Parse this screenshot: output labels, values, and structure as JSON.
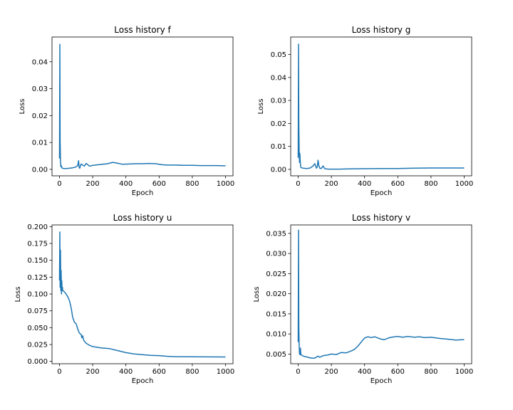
{
  "chart_data": [
    {
      "type": "line",
      "title": "Loss history f",
      "xlabel": "Epoch",
      "ylabel": "Loss",
      "xlim": [
        -45,
        1045
      ],
      "ylim": [
        -0.0024,
        0.0492
      ],
      "xticks": [
        0,
        200,
        400,
        600,
        800,
        1000
      ],
      "xtick_labels": [
        "0",
        "200",
        "400",
        "600",
        "800",
        "1000"
      ],
      "yticks": [
        0.0,
        0.01,
        0.02,
        0.03,
        0.04
      ],
      "ytick_labels": [
        "0.00",
        "0.01",
        "0.02",
        "0.03",
        "0.04"
      ],
      "grid": false,
      "color": "#1f77b4",
      "series": [
        {
          "x": [
            0,
            2,
            4,
            6,
            8,
            10,
            15,
            25,
            40,
            60,
            80,
            100,
            110,
            115,
            118,
            122,
            130,
            150,
            160,
            170,
            180,
            190,
            200,
            230,
            260,
            290,
            320,
            340,
            380,
            420,
            460,
            500,
            540,
            580,
            620,
            660,
            700,
            750,
            800,
            850,
            900,
            950,
            1000
          ],
          "y": [
            0.004,
            0.0465,
            0.011,
            0.003,
            0.001,
            0.0015,
            0.0005,
            0.0003,
            0.0003,
            0.0004,
            0.0006,
            0.0009,
            0.0015,
            0.0032,
            0.0008,
            0.0004,
            0.002,
            0.0012,
            0.0022,
            0.0018,
            0.0012,
            0.0013,
            0.0015,
            0.0017,
            0.0019,
            0.0021,
            0.0026,
            0.0024,
            0.0019,
            0.002,
            0.0021,
            0.0021,
            0.0022,
            0.0021,
            0.0017,
            0.0016,
            0.0016,
            0.0015,
            0.0015,
            0.0014,
            0.0014,
            0.0014,
            0.0013
          ]
        }
      ]
    },
    {
      "type": "line",
      "title": "Loss history g",
      "xlabel": "Epoch",
      "ylabel": "Loss",
      "xlim": [
        -45,
        1045
      ],
      "ylim": [
        -0.0028,
        0.0576
      ],
      "xticks": [
        0,
        200,
        400,
        600,
        800,
        1000
      ],
      "xtick_labels": [
        "0",
        "200",
        "400",
        "600",
        "800",
        "1000"
      ],
      "yticks": [
        0.0,
        0.01,
        0.02,
        0.03,
        0.04,
        0.05
      ],
      "ytick_labels": [
        "0.00",
        "0.01",
        "0.02",
        "0.03",
        "0.04",
        "0.05"
      ],
      "grid": false,
      "color": "#1f77b4",
      "series": [
        {
          "x": [
            0,
            2,
            4,
            6,
            8,
            10,
            12,
            15,
            20,
            30,
            50,
            70,
            90,
            100,
            110,
            115,
            120,
            125,
            130,
            140,
            150,
            160,
            170,
            180,
            200,
            250,
            300,
            400,
            500,
            600,
            700,
            800,
            900,
            1000
          ],
          "y": [
            0.005,
            0.0545,
            0.02,
            0.008,
            0.003,
            0.007,
            0.004,
            0.001,
            0.0007,
            0.0005,
            0.0004,
            0.0005,
            0.0015,
            0.0025,
            0.0005,
            0.0012,
            0.004,
            0.0015,
            0.0005,
            0.0004,
            0.0015,
            0.0003,
            0.0002,
            0.0001,
            0.0001,
            0.0001,
            0.0002,
            0.0003,
            0.0004,
            0.0004,
            0.0005,
            0.0006,
            0.0006,
            0.0006
          ]
        }
      ]
    },
    {
      "type": "line",
      "title": "Loss history u",
      "xlabel": "Epoch",
      "ylabel": "Loss",
      "xlim": [
        -45,
        1045
      ],
      "ylim": [
        -0.0035,
        0.2025
      ],
      "xticks": [
        0,
        200,
        400,
        600,
        800,
        1000
      ],
      "xtick_labels": [
        "0",
        "200",
        "400",
        "600",
        "800",
        "1000"
      ],
      "yticks": [
        0.0,
        0.025,
        0.05,
        0.075,
        0.1,
        0.125,
        0.15,
        0.175,
        0.2
      ],
      "ytick_labels": [
        "0.000",
        "0.025",
        "0.050",
        "0.075",
        "0.100",
        "0.125",
        "0.150",
        "0.175",
        "0.200"
      ],
      "grid": false,
      "color": "#1f77b4",
      "series": [
        {
          "x": [
            0,
            2,
            4,
            6,
            8,
            10,
            12,
            14,
            16,
            18,
            20,
            25,
            30,
            40,
            50,
            60,
            70,
            80,
            90,
            100,
            105,
            110,
            120,
            130,
            135,
            140,
            145,
            150,
            160,
            180,
            200,
            250,
            300,
            350,
            400,
            450,
            500,
            550,
            600,
            650,
            700,
            800,
            900,
            1000
          ],
          "y": [
            0.12,
            0.192,
            0.11,
            0.165,
            0.105,
            0.135,
            0.1,
            0.12,
            0.105,
            0.11,
            0.105,
            0.104,
            0.103,
            0.1,
            0.096,
            0.09,
            0.08,
            0.065,
            0.058,
            0.056,
            0.052,
            0.048,
            0.042,
            0.04,
            0.035,
            0.038,
            0.032,
            0.03,
            0.027,
            0.024,
            0.022,
            0.02,
            0.019,
            0.016,
            0.013,
            0.011,
            0.01,
            0.009,
            0.0085,
            0.0075,
            0.007,
            0.0068,
            0.0066,
            0.0065
          ]
        }
      ]
    },
    {
      "type": "line",
      "title": "Loss history v",
      "xlabel": "Epoch",
      "ylabel": "Loss",
      "xlim": [
        -45,
        1045
      ],
      "ylim": [
        0.0026,
        0.0371
      ],
      "xticks": [
        0,
        200,
        400,
        600,
        800,
        1000
      ],
      "xtick_labels": [
        "0",
        "200",
        "400",
        "600",
        "800",
        "1000"
      ],
      "yticks": [
        0.005,
        0.01,
        0.015,
        0.02,
        0.025,
        0.03,
        0.035
      ],
      "ytick_labels": [
        "0.005",
        "0.010",
        "0.015",
        "0.020",
        "0.025",
        "0.030",
        "0.035"
      ],
      "grid": false,
      "color": "#1f77b4",
      "series": [
        {
          "x": [
            0,
            2,
            4,
            6,
            8,
            10,
            12,
            14,
            16,
            20,
            30,
            50,
            80,
            100,
            120,
            130,
            150,
            180,
            200,
            230,
            260,
            290,
            320,
            340,
            360,
            380,
            400,
            420,
            440,
            460,
            480,
            500,
            520,
            550,
            580,
            600,
            630,
            660,
            700,
            730,
            760,
            800,
            850,
            900,
            950,
            1000
          ],
          "y": [
            0.008,
            0.0358,
            0.012,
            0.007,
            0.005,
            0.006,
            0.0048,
            0.0065,
            0.005,
            0.0048,
            0.0045,
            0.0043,
            0.004,
            0.004,
            0.0045,
            0.0042,
            0.0046,
            0.0048,
            0.005,
            0.0049,
            0.0054,
            0.0053,
            0.0058,
            0.0062,
            0.007,
            0.008,
            0.009,
            0.0093,
            0.0091,
            0.0093,
            0.009,
            0.0087,
            0.0086,
            0.0091,
            0.0093,
            0.0094,
            0.0092,
            0.0094,
            0.0092,
            0.0093,
            0.0091,
            0.0092,
            0.0089,
            0.0087,
            0.0085,
            0.0086
          ]
        }
      ]
    }
  ]
}
